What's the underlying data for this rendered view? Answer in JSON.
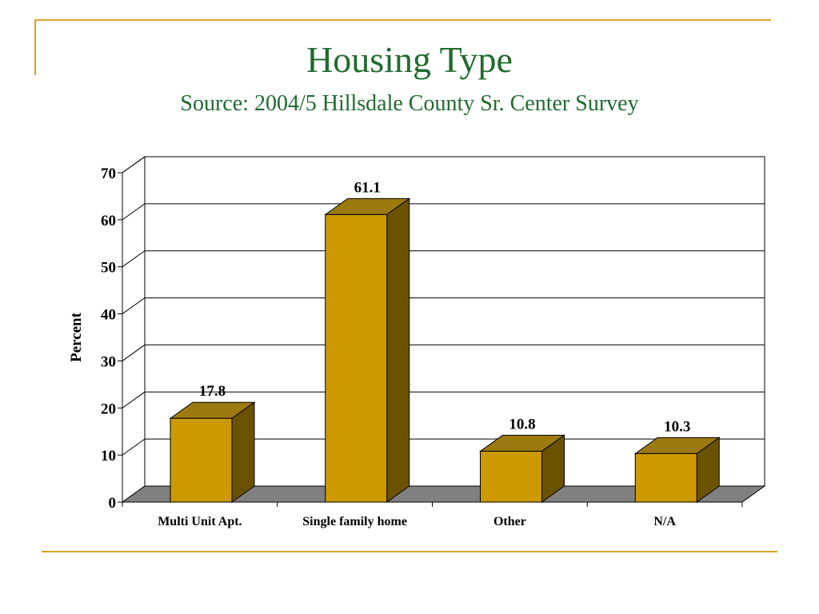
{
  "slide": {
    "title": "Housing Type",
    "subtitle": "Source: 2004/5 Hillsdale County Sr. Center Survey",
    "accent_color": "#d7a32b",
    "title_color": "#1f6b2e"
  },
  "chart_data": {
    "type": "bar",
    "categories": [
      "Multi Unit Apt.",
      "Single family home",
      "Other",
      "N/A"
    ],
    "values": [
      17.8,
      61.1,
      10.8,
      10.3
    ],
    "value_labels": [
      "17.8",
      "61.1",
      "10.8",
      "10.3"
    ],
    "xlabel": "",
    "ylabel": "Percent",
    "ylim": [
      0,
      70
    ],
    "yticks": [
      "0",
      "10",
      "20",
      "30",
      "40",
      "50",
      "60",
      "70"
    ],
    "grid": true,
    "legend": "none",
    "colors": {
      "bar_front": "#cc9900",
      "bar_top": "#9c7a10",
      "bar_side": "#6b5200",
      "floor": "#808080"
    }
  }
}
